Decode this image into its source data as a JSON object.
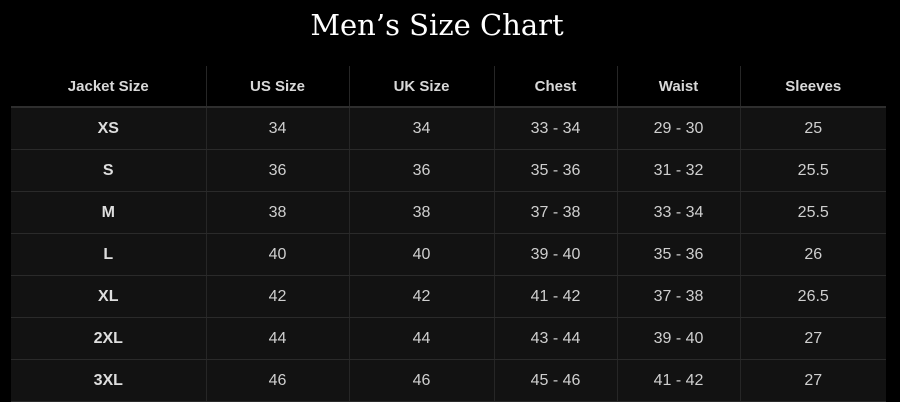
{
  "title": "Men’s Size Chart",
  "columns": [
    "Jacket Size",
    "US Size",
    "UK Size",
    "Chest",
    "Waist",
    "Sleeves"
  ],
  "rows": [
    [
      "XS",
      "34",
      "34",
      "33 - 34",
      "29 - 30",
      "25"
    ],
    [
      "S",
      "36",
      "36",
      "35 - 36",
      "31 - 32",
      "25.5"
    ],
    [
      "M",
      "38",
      "38",
      "37 - 38",
      "33 - 34",
      "25.5"
    ],
    [
      "L",
      "40",
      "40",
      "39 - 40",
      "35 - 36",
      "26"
    ],
    [
      "XL",
      "42",
      "42",
      "41 - 42",
      "37 - 38",
      "26.5"
    ],
    [
      "2XL",
      "44",
      "44",
      "43 - 44",
      "39 - 40",
      "27"
    ],
    [
      "3XL",
      "46",
      "46",
      "45 - 46",
      "41 - 42",
      "27"
    ]
  ]
}
